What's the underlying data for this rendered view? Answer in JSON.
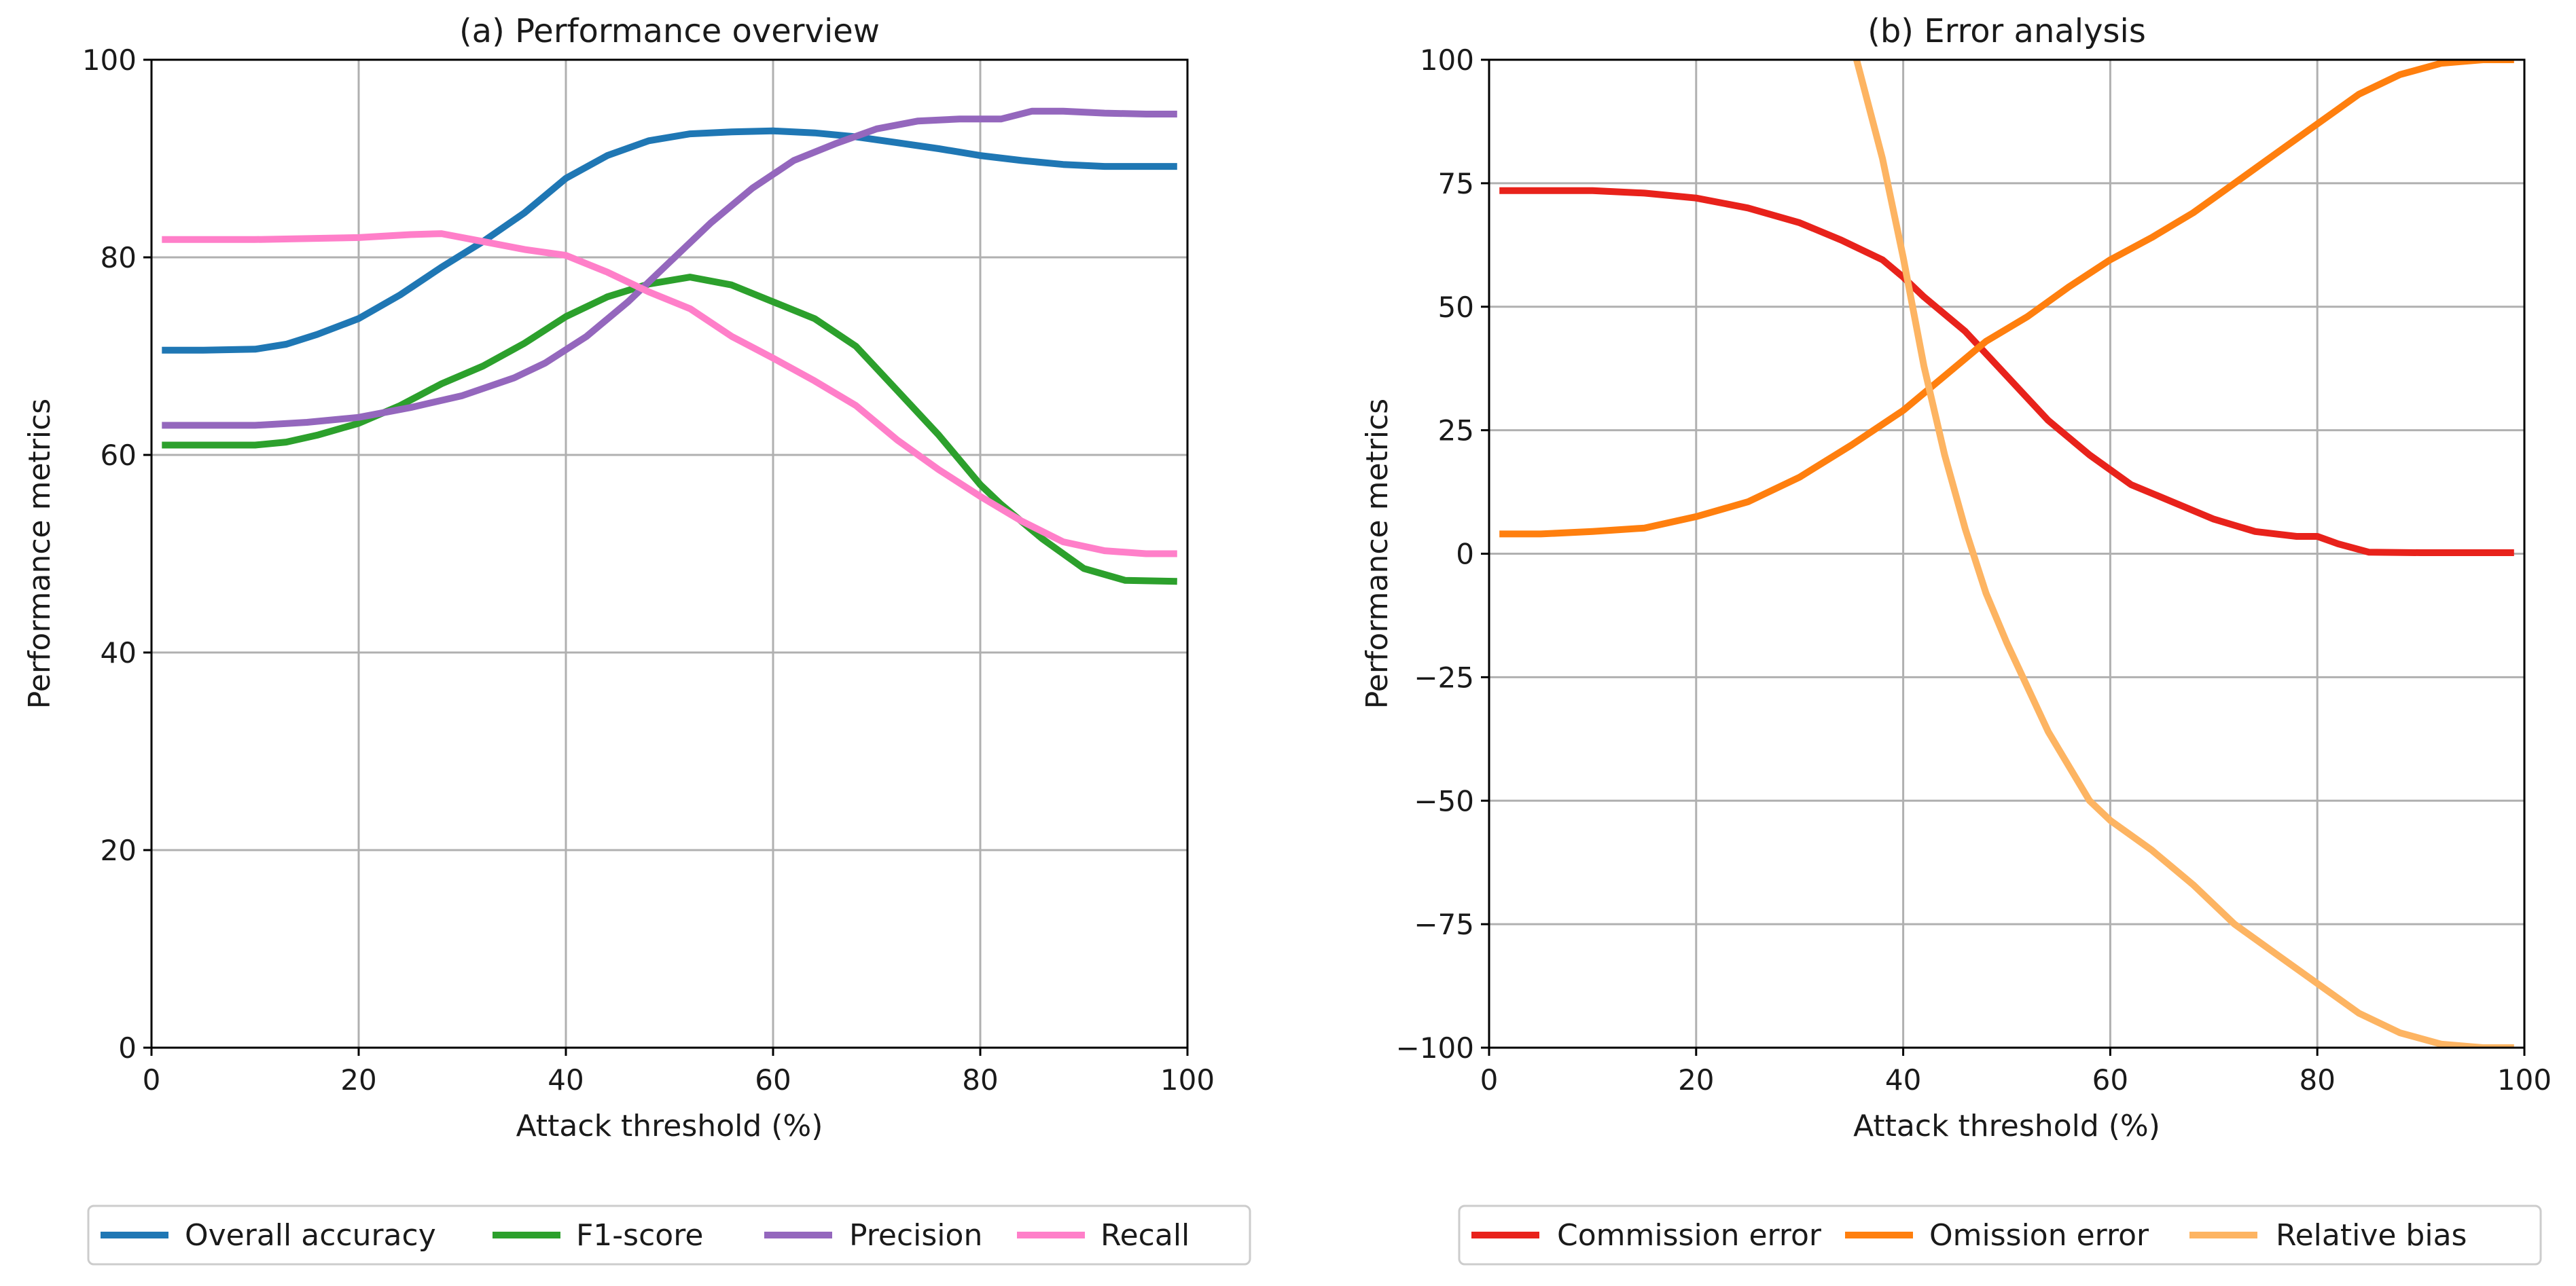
{
  "chart_data": [
    {
      "type": "line",
      "title": "(a) Performance overview",
      "xlabel": "Attack threshold (%)",
      "ylabel": "Performance metrics",
      "xlim": [
        0,
        100
      ],
      "ylim": [
        0,
        100
      ],
      "xticks": [
        0,
        20,
        40,
        60,
        80,
        100
      ],
      "yticks": [
        0,
        20,
        40,
        60,
        80,
        100
      ],
      "xtick_labels": [
        "0",
        "20",
        "40",
        "60",
        "80",
        "100"
      ],
      "ytick_labels": [
        "0",
        "20",
        "40",
        "60",
        "80",
        "100"
      ],
      "grid": true,
      "legend_position": "bottom",
      "series": [
        {
          "name": "Overall accuracy",
          "color": "#1f77b4",
          "x": [
            1,
            5,
            10,
            13,
            16,
            20,
            24,
            28,
            32,
            36,
            40,
            44,
            48,
            52,
            56,
            60,
            64,
            68,
            72,
            76,
            80,
            84,
            88,
            92,
            96,
            99
          ],
          "y": [
            70.6,
            70.6,
            70.7,
            71.2,
            72.2,
            73.8,
            76.2,
            79.0,
            81.6,
            84.5,
            88.0,
            90.3,
            91.8,
            92.5,
            92.7,
            92.8,
            92.6,
            92.2,
            91.6,
            91.0,
            90.3,
            89.8,
            89.4,
            89.2,
            89.2,
            89.2
          ]
        },
        {
          "name": "F1-score",
          "color": "#2ca02c",
          "x": [
            1,
            5,
            10,
            13,
            16,
            20,
            24,
            28,
            32,
            36,
            40,
            44,
            48,
            52,
            56,
            60,
            64,
            68,
            72,
            76,
            80,
            82,
            86,
            90,
            94,
            99
          ],
          "y": [
            61.0,
            61.0,
            61.0,
            61.3,
            62.0,
            63.2,
            65.0,
            67.2,
            69.0,
            71.3,
            74.0,
            76.0,
            77.3,
            78.0,
            77.2,
            75.5,
            73.8,
            71.0,
            66.5,
            62.0,
            57.0,
            55.0,
            51.5,
            48.5,
            47.3,
            47.2
          ]
        },
        {
          "name": "Precision",
          "color": "#9467bd",
          "x": [
            1,
            5,
            10,
            15,
            20,
            25,
            30,
            35,
            38,
            42,
            46,
            50,
            54,
            58,
            62,
            66,
            70,
            74,
            78,
            82,
            85,
            88,
            92,
            96,
            99
          ],
          "y": [
            63.0,
            63.0,
            63.0,
            63.3,
            63.8,
            64.8,
            66.0,
            67.8,
            69.3,
            72.0,
            75.5,
            79.5,
            83.5,
            87.0,
            89.8,
            91.5,
            93.0,
            93.8,
            94.0,
            94.0,
            94.8,
            94.8,
            94.6,
            94.5,
            94.5
          ]
        },
        {
          "name": "Recall",
          "color": "#ff7fc9",
          "x": [
            1,
            10,
            15,
            20,
            25,
            28,
            32,
            36,
            40,
            44,
            48,
            52,
            56,
            60,
            64,
            68,
            72,
            76,
            80,
            84,
            88,
            92,
            96,
            99
          ],
          "y": [
            81.8,
            81.8,
            81.9,
            82.0,
            82.3,
            82.4,
            81.6,
            80.8,
            80.2,
            78.5,
            76.5,
            74.8,
            72.0,
            69.8,
            67.5,
            65.0,
            61.5,
            58.5,
            55.8,
            53.3,
            51.2,
            50.3,
            50.0,
            50.0
          ]
        }
      ]
    },
    {
      "type": "line",
      "title": "(b) Error analysis",
      "xlabel": "Attack threshold (%)",
      "ylabel": "Performance metrics",
      "xlim": [
        0,
        100
      ],
      "ylim": [
        -100,
        100
      ],
      "xticks": [
        0,
        20,
        40,
        60,
        80,
        100
      ],
      "yticks": [
        -100,
        -75,
        -50,
        -25,
        0,
        25,
        50,
        75,
        100
      ],
      "xtick_labels": [
        "0",
        "20",
        "40",
        "60",
        "80",
        "100"
      ],
      "ytick_labels": [
        "−100",
        "−75",
        "−50",
        "−25",
        "0",
        "25",
        "50",
        "75",
        "100"
      ],
      "grid": true,
      "legend_position": "bottom",
      "series": [
        {
          "name": "Commission error",
          "color": "#e8221b",
          "x": [
            1,
            10,
            15,
            20,
            25,
            30,
            34,
            38,
            40,
            42,
            46,
            50,
            54,
            58,
            62,
            66,
            70,
            74,
            78,
            80,
            82,
            85,
            90,
            95,
            99
          ],
          "y": [
            73.5,
            73.5,
            73.0,
            72.0,
            70.0,
            67.0,
            63.5,
            59.5,
            56.0,
            52.0,
            45.0,
            36.0,
            27.0,
            20.0,
            14.0,
            10.5,
            7.0,
            4.5,
            3.5,
            3.5,
            2.0,
            0.3,
            0.2,
            0.2,
            0.2
          ]
        },
        {
          "name": "Omission error",
          "color": "#ff7f0e",
          "x": [
            1,
            5,
            10,
            15,
            20,
            25,
            30,
            35,
            40,
            44,
            48,
            52,
            56,
            60,
            64,
            68,
            72,
            76,
            80,
            84,
            88,
            92,
            96,
            99
          ],
          "y": [
            4.0,
            4.0,
            4.5,
            5.2,
            7.5,
            10.5,
            15.5,
            22.0,
            29.0,
            36.0,
            43.0,
            48.0,
            54.0,
            59.5,
            64.0,
            69.0,
            75.0,
            81.0,
            87.0,
            93.0,
            97.0,
            99.3,
            100.0,
            100.0
          ]
        },
        {
          "name": "Relative bias",
          "color": "#fdb462",
          "x": [
            35.5,
            38,
            40,
            42,
            44,
            46,
            48,
            50,
            52,
            54,
            56,
            58,
            60,
            64,
            68,
            72,
            76,
            80,
            84,
            88,
            92,
            96,
            99
          ],
          "y": [
            100.0,
            80.0,
            60.0,
            38.0,
            20.0,
            5.0,
            -8.0,
            -18.0,
            -27.0,
            -36.0,
            -43.0,
            -50.0,
            -54.0,
            -60.0,
            -67.0,
            -75.0,
            -81.0,
            -87.0,
            -93.0,
            -97.0,
            -99.3,
            -100.0,
            -100.0
          ]
        }
      ]
    }
  ]
}
